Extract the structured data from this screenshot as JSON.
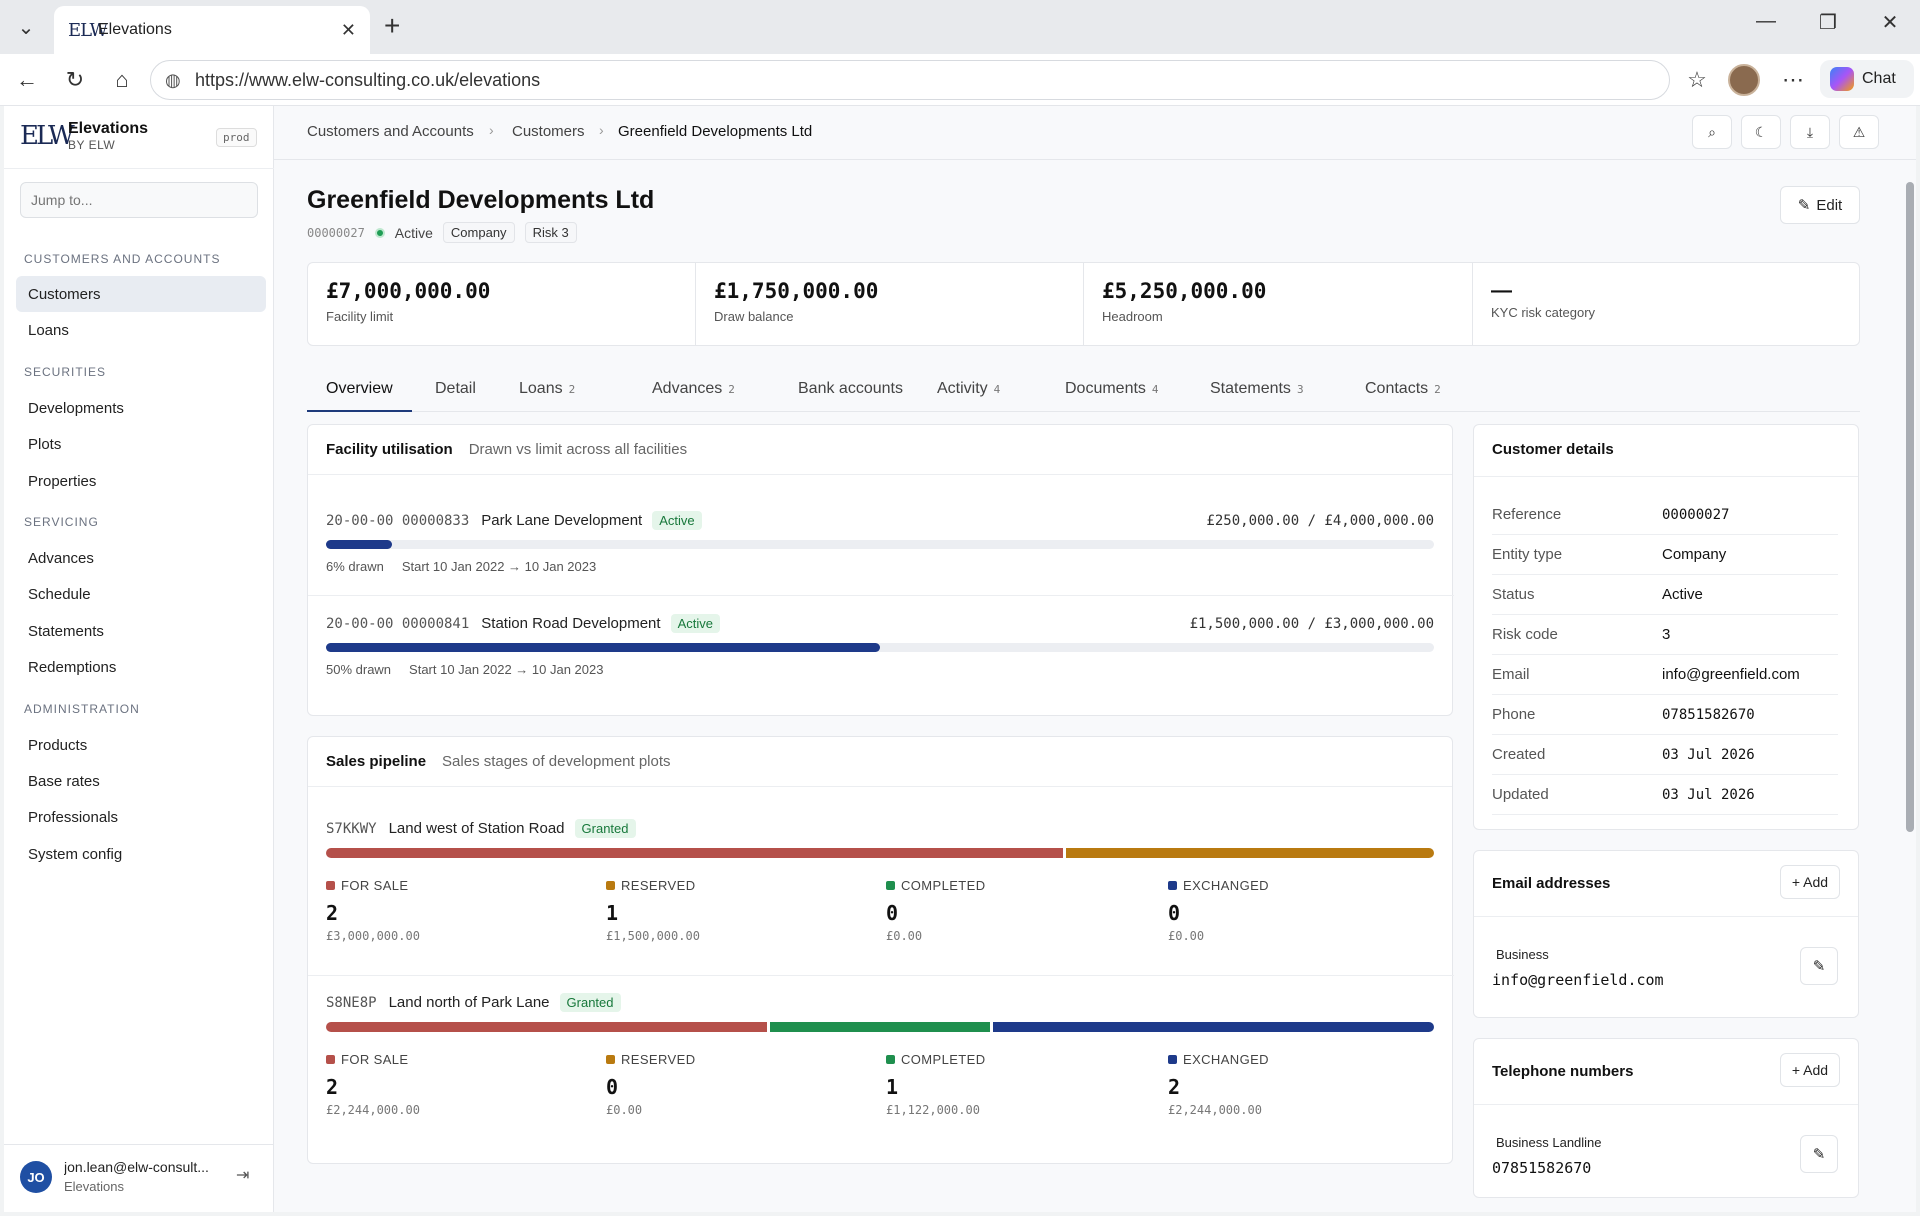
{
  "browser": {
    "tab_title": "Elevations",
    "tab_favicon": "ELW",
    "url": "https://www.elw-consulting.co.uk/elevations",
    "chat_label": "Chat"
  },
  "sidebar": {
    "brand_mark": "ELW",
    "brand_name": "Elevations",
    "brand_sub": "BY ELW",
    "env": "prod",
    "jump_placeholder": "Jump to...",
    "sections": [
      {
        "title": "CUSTOMERS AND ACCOUNTS",
        "items": [
          "Customers",
          "Loans"
        ]
      },
      {
        "title": "SECURITIES",
        "items": [
          "Developments",
          "Plots",
          "Properties"
        ]
      },
      {
        "title": "SERVICING",
        "items": [
          "Advances",
          "Schedule",
          "Statements",
          "Redemptions"
        ]
      },
      {
        "title": "ADMINISTRATION",
        "items": [
          "Products",
          "Base rates",
          "Professionals",
          "System config"
        ]
      }
    ],
    "active_item": "Customers",
    "user": {
      "initials": "JO",
      "email": "jon.lean@elw-consult...",
      "org": "Elevations"
    }
  },
  "breadcrumb": [
    "Customers and Accounts",
    "Customers",
    "Greenfield Developments Ltd"
  ],
  "header": {
    "title": "Greenfield Developments Ltd",
    "reference": "00000027",
    "status": "Active",
    "entity_chip": "Company",
    "risk_chip": "Risk 3",
    "edit_label": "Edit"
  },
  "kpis": [
    {
      "value": "£7,000,000.00",
      "label": "Facility limit"
    },
    {
      "value": "£1,750,000.00",
      "label": "Draw balance"
    },
    {
      "value": "£5,250,000.00",
      "label": "Headroom"
    },
    {
      "value": "—",
      "label": "KYC risk category"
    }
  ],
  "tabs": [
    {
      "label": "Overview",
      "count": ""
    },
    {
      "label": "Detail",
      "count": ""
    },
    {
      "label": "Loans",
      "count": "2"
    },
    {
      "label": "Advances",
      "count": "2"
    },
    {
      "label": "Bank accounts",
      "count": ""
    },
    {
      "label": "Activity",
      "count": "4"
    },
    {
      "label": "Documents",
      "count": "4"
    },
    {
      "label": "Statements",
      "count": "3"
    },
    {
      "label": "Contacts",
      "count": "2"
    }
  ],
  "facility": {
    "title": "Facility utilisation",
    "subtitle": "Drawn vs limit across all facilities",
    "rows": [
      {
        "account": "20-00-00 00000833",
        "name": "Park Lane Development",
        "status": "Active",
        "amount": "£250,000.00 / £4,000,000.00",
        "drawn_pct": 6,
        "drawn_label": "6% drawn",
        "dates": "Start 10 Jan 2022 → 10 Jan 2023"
      },
      {
        "account": "20-00-00 00000841",
        "name": "Station Road Development",
        "status": "Active",
        "amount": "£1,500,000.00 / £3,000,000.00",
        "drawn_pct": 50,
        "drawn_label": "50% drawn",
        "dates": "Start 10 Jan 2022 → 10 Jan 2023"
      }
    ]
  },
  "pipeline": {
    "title": "Sales pipeline",
    "subtitle": "Sales stages of development plots",
    "colors": {
      "for_sale": "#b5504a",
      "reserved": "#b97a10",
      "completed": "#1f8f4e",
      "exchanged": "#1e3a8a"
    },
    "rows": [
      {
        "code": "S7KKWY",
        "name": "Land west of Station Road",
        "status": "Granted",
        "stages": [
          {
            "key": "for_sale",
            "label": "FOR SALE",
            "count": "2",
            "value": "£3,000,000.00"
          },
          {
            "key": "reserved",
            "label": "RESERVED",
            "count": "1",
            "value": "£1,500,000.00"
          },
          {
            "key": "completed",
            "label": "COMPLETED",
            "count": "0",
            "value": "£0.00"
          },
          {
            "key": "exchanged",
            "label": "EXCHANGED",
            "count": "0",
            "value": "£0.00"
          }
        ]
      },
      {
        "code": "S8NE8P",
        "name": "Land north of Park Lane",
        "status": "Granted",
        "stages": [
          {
            "key": "for_sale",
            "label": "FOR SALE",
            "count": "2",
            "value": "£2,244,000.00"
          },
          {
            "key": "reserved",
            "label": "RESERVED",
            "count": "0",
            "value": "£0.00"
          },
          {
            "key": "completed",
            "label": "COMPLETED",
            "count": "1",
            "value": "£1,122,000.00"
          },
          {
            "key": "exchanged",
            "label": "EXCHANGED",
            "count": "2",
            "value": "£2,244,000.00"
          }
        ]
      }
    ]
  },
  "customer_details": {
    "title": "Customer details",
    "rows": [
      {
        "k": "Reference",
        "v": "00000027",
        "mono": true
      },
      {
        "k": "Entity type",
        "v": "Company",
        "mono": false
      },
      {
        "k": "Status",
        "v": "Active",
        "mono": false
      },
      {
        "k": "Risk code",
        "v": "3",
        "mono": false
      },
      {
        "k": "Email",
        "v": "info@greenfield.com",
        "mono": false
      },
      {
        "k": "Phone",
        "v": "07851582670",
        "mono": true
      },
      {
        "k": "Created",
        "v": "03 Jul 2026",
        "mono": true
      },
      {
        "k": "Updated",
        "v": "03 Jul 2026",
        "mono": true
      }
    ]
  },
  "emails": {
    "title": "Email addresses",
    "add_label": "+ Add",
    "type": "Business",
    "value": "info@greenfield.com"
  },
  "phones": {
    "title": "Telephone numbers",
    "add_label": "+ Add",
    "type": "Business Landline",
    "value": "07851582670"
  }
}
